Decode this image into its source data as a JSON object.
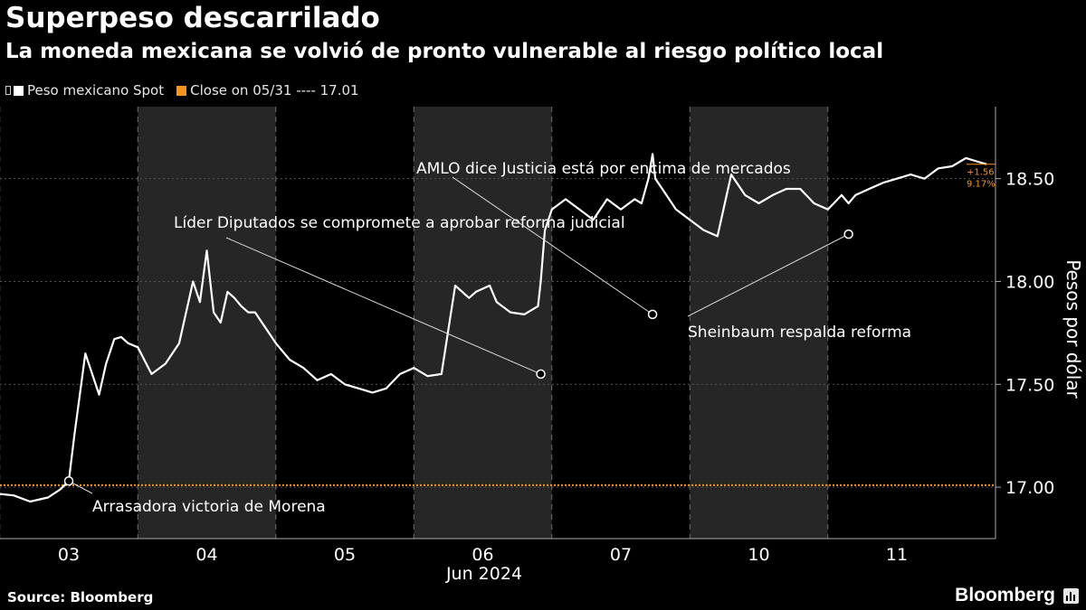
{
  "header": {
    "title": "Superpeso descarrilado",
    "subtitle": "La moneda mexicana se volvió de pronto vulnerable al riesgo político local"
  },
  "legend": {
    "series_label": "Peso mexicano Spot",
    "close_label": "Close on 05/31 ---- 17.01"
  },
  "footer": {
    "source": "Source: Bloomberg",
    "brand": "Bloomberg"
  },
  "colors": {
    "series": "#ffffff",
    "reference": "#f7941d",
    "shade": "#262626",
    "grid": "#555555"
  },
  "chart_data": {
    "type": "line",
    "xlabel": "Jun 2024",
    "ylabel": "Pesos por dólar",
    "ylim": [
      16.75,
      18.85
    ],
    "yticks": [
      17.0,
      17.5,
      18.0,
      18.5
    ],
    "ytick_labels": [
      "17.00",
      "17.50",
      "18.00",
      "18.50"
    ],
    "categories": [
      "03",
      "04",
      "05",
      "06",
      "07",
      "10",
      "11"
    ],
    "shaded_days": [
      "04",
      "06",
      "10"
    ],
    "reference_line": {
      "label": "Close on 05/31",
      "value": 17.01
    },
    "last_value_badge": {
      "change": "+1.56",
      "pct_change": "9.17%"
    },
    "series": [
      {
        "name": "Peso mexicano Spot",
        "x": [
          -0.54,
          -0.4,
          -0.28,
          -0.15,
          -0.06,
          0.0,
          0.04,
          0.08,
          0.12,
          0.17,
          0.22,
          0.27,
          0.33,
          0.38,
          0.43,
          0.5,
          0.6,
          0.7,
          0.8,
          0.9,
          0.95,
          1.0,
          1.05,
          1.1,
          1.15,
          1.2,
          1.25,
          1.3,
          1.35,
          1.4,
          1.5,
          1.6,
          1.7,
          1.8,
          1.9,
          2.0,
          2.1,
          2.2,
          2.3,
          2.4,
          2.5,
          2.6,
          2.7,
          2.8,
          2.9,
          2.95,
          3.05,
          3.1,
          3.2,
          3.3,
          3.4,
          3.42,
          3.45,
          3.5,
          3.6,
          3.7,
          3.8,
          3.9,
          4.0,
          4.1,
          4.15,
          4.2,
          4.23,
          4.25,
          4.3,
          4.4,
          4.5,
          4.6,
          4.7,
          4.8,
          4.9,
          5.0,
          5.1,
          5.2,
          5.3,
          5.4,
          5.5,
          5.6,
          5.65,
          5.7,
          5.8,
          5.9,
          6.0,
          6.1,
          6.2,
          6.3,
          6.4,
          6.5,
          6.6,
          6.65
        ],
        "values": [
          16.97,
          16.96,
          16.93,
          16.95,
          16.99,
          17.03,
          17.25,
          17.45,
          17.65,
          17.55,
          17.45,
          17.6,
          17.72,
          17.73,
          17.7,
          17.68,
          17.55,
          17.6,
          17.7,
          18.0,
          17.9,
          18.15,
          17.85,
          17.8,
          17.95,
          17.92,
          17.88,
          17.85,
          17.85,
          17.8,
          17.7,
          17.62,
          17.58,
          17.52,
          17.55,
          17.5,
          17.48,
          17.46,
          17.48,
          17.55,
          17.58,
          17.54,
          17.55,
          17.98,
          17.92,
          17.95,
          17.98,
          17.9,
          17.85,
          17.84,
          17.88,
          18.0,
          18.25,
          18.35,
          18.4,
          18.35,
          18.3,
          18.4,
          18.35,
          18.4,
          18.38,
          18.5,
          18.62,
          18.5,
          18.45,
          18.35,
          18.3,
          18.25,
          18.22,
          18.52,
          18.42,
          18.38,
          18.42,
          18.45,
          18.45,
          18.38,
          18.35,
          18.42,
          18.38,
          18.42,
          18.45,
          18.48,
          18.5,
          18.52,
          18.5,
          18.55,
          18.56,
          18.6,
          18.58,
          18.57
        ]
      }
    ],
    "annotations": [
      {
        "text": "Arrasadora victoria de Morena",
        "x": 0.0,
        "y": 17.03
      },
      {
        "text": "Líder Diputados se compromete a aprobar reforma judicial",
        "x": 3.42,
        "y": 17.55
      },
      {
        "text": "AMLO dice Justicia está por encima de mercados",
        "x": 4.23,
        "y": 17.84
      },
      {
        "text": "Sheinbaum respalda reforma",
        "x": 5.65,
        "y": 18.23
      }
    ]
  }
}
